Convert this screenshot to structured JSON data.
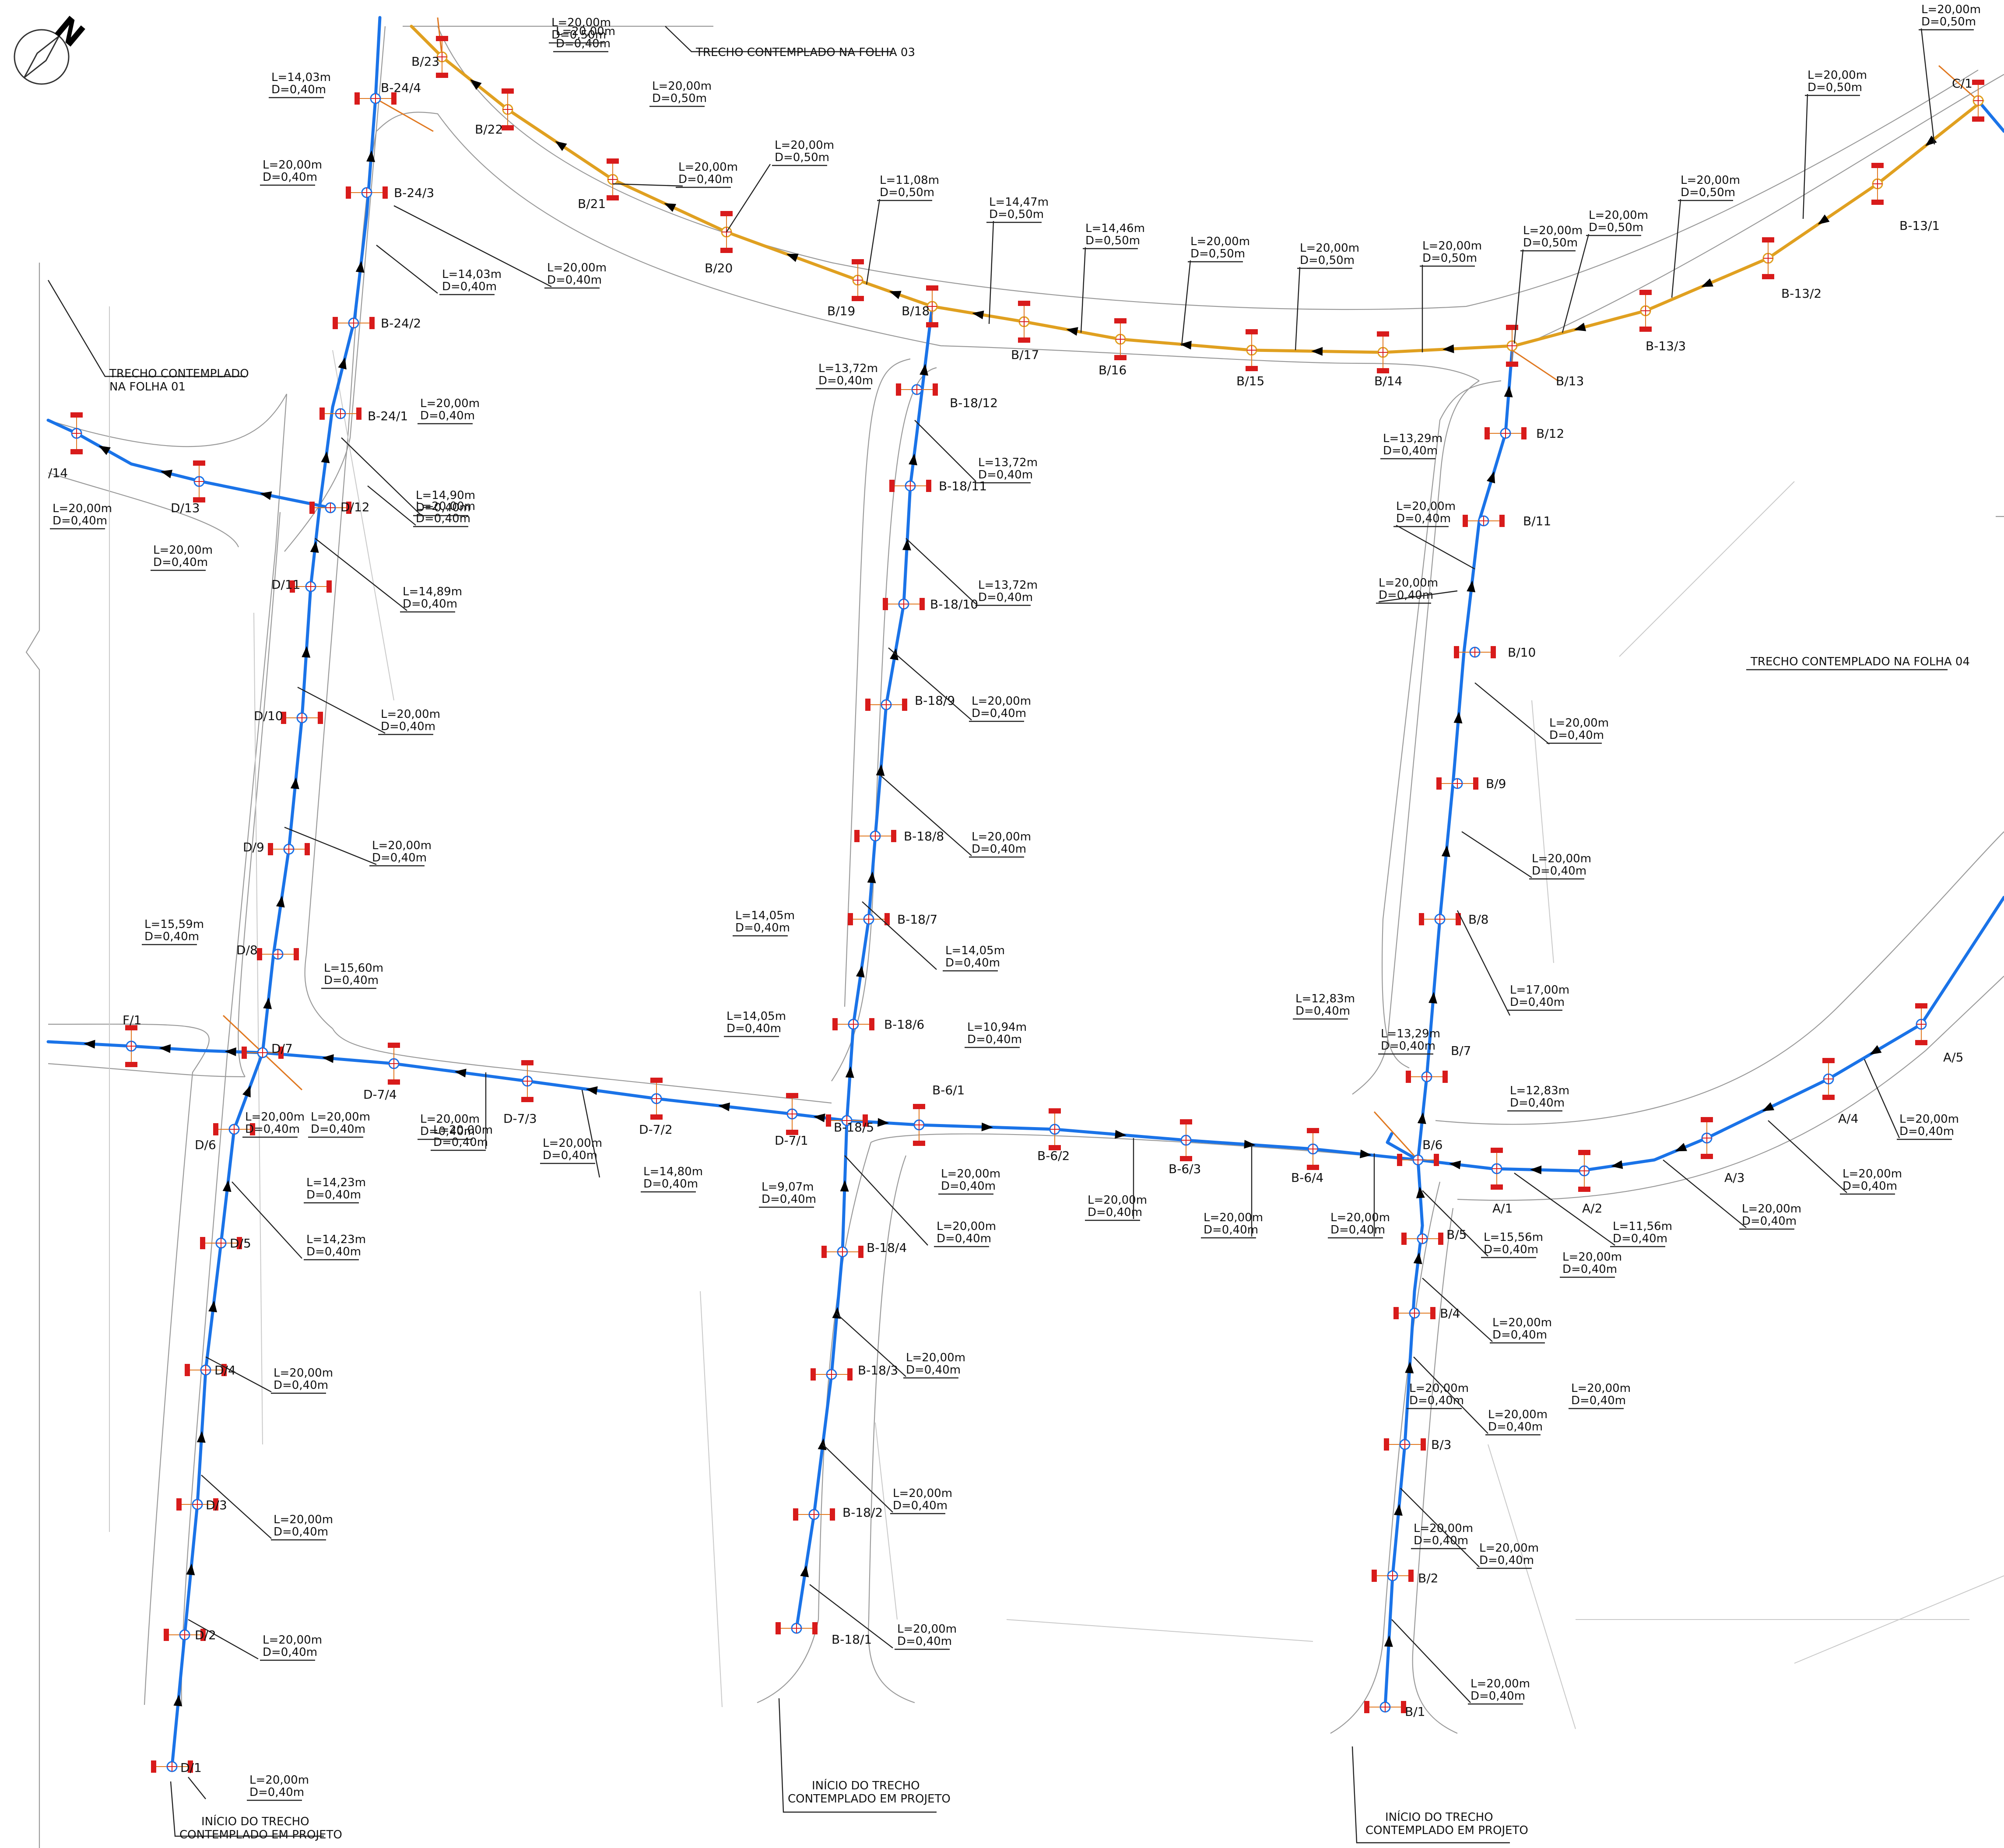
{
  "colors": {
    "pipe_d040": "#1a73e8",
    "pipe_d050": "#e0a020",
    "node_mark": "#d81b1b",
    "connection": "#e07820",
    "road": "#9a9a9a"
  },
  "icons": {
    "north": "north-arrow-icon",
    "flow": "flow-arrow-icon",
    "node": "manhole-node-icon",
    "inlet": "storm-inlet-icon"
  },
  "north_label": "N",
  "notes": [
    {
      "id": "folha03",
      "text": "TRECHO  CONTEMPLADO  NA  FOLHA  03"
    },
    {
      "id": "folha01a",
      "text": "TRECHO  CONTEMPLADO"
    },
    {
      "id": "folha01b",
      "text": "NA  FOLHA  01"
    },
    {
      "id": "folha04",
      "text": "TRECHO  CONTEMPLADO  NA  FOLHA  04"
    },
    {
      "id": "inicio1a",
      "text": "INÍCIO  DO  TRECHO"
    },
    {
      "id": "inicio1b",
      "text": "CONTEMPLADO  EM  PROJETO"
    },
    {
      "id": "inicio2a",
      "text": "INÍCIO  DO  TRECHO"
    },
    {
      "id": "inicio2b",
      "text": "CONTEMPLADO  EM  PROJETO"
    },
    {
      "id": "inicio3a",
      "text": "INÍCIO  DO  TRECHO"
    },
    {
      "id": "inicio3b",
      "text": "CONTEMPLADO  EM  PROJETO"
    }
  ],
  "nodes": [
    "D/1",
    "D/2",
    "D/3",
    "D/4",
    "D/5",
    "D/6",
    "D/7",
    "D/8",
    "D/9",
    "D/10",
    "D/11",
    "D/12",
    "D/13",
    "/14",
    "F/1",
    "B-24/1",
    "B-24/2",
    "B-24/3",
    "B-24/4",
    "B/23",
    "B/22",
    "B/21",
    "B/20",
    "B/19",
    "B/18",
    "B/17",
    "B/16",
    "B/15",
    "B/14",
    "B/13",
    "B/12",
    "B/11",
    "B/10",
    "B/9",
    "B/8",
    "B/7",
    "B/6",
    "B/5",
    "B/4",
    "B/3",
    "B/2",
    "B/1",
    "B-13/1",
    "B-13/2",
    "B-13/3",
    "C/1",
    "D-7/1",
    "D-7/2",
    "D-7/3",
    "D-7/4",
    "B-18/1",
    "B-18/2",
    "B-18/3",
    "B-18/4",
    "B-18/5",
    "B-18/6",
    "B-18/7",
    "B-18/8",
    "B-18/9",
    "B-18/10",
    "B-18/11",
    "B-18/12",
    "B-6/1",
    "B-6/2",
    "B-6/3",
    "B-6/4",
    "A/1",
    "A/2",
    "A/3",
    "A/4",
    "A/5"
  ],
  "segments": [
    {
      "L": "L=20,00m",
      "D": "D=0,40m"
    },
    {
      "L": "L=20,00m",
      "D": "D=0,40m"
    },
    {
      "L": "L=20,00m",
      "D": "D=0,40m"
    },
    {
      "L": "L=20,00m",
      "D": "D=0,40m"
    },
    {
      "L": "L=14,23m",
      "D": "D=0,40m"
    },
    {
      "L": "L=14,23m",
      "D": "D=0,40m"
    },
    {
      "L": "L=20,00m",
      "D": "D=0,40m"
    },
    {
      "L": "L=15,59m",
      "D": "D=0,40m"
    },
    {
      "L": "L=15,60m",
      "D": "D=0,40m"
    },
    {
      "L": "L=20,00m",
      "D": "D=0,40m"
    },
    {
      "L": "L=20,00m",
      "D": "D=0,40m"
    },
    {
      "L": "L=14,89m",
      "D": "D=0,40m"
    },
    {
      "L": "L=14,90m",
      "D": "D=0,40m"
    },
    {
      "L": "L=20,00m",
      "D": "D=0,40m"
    },
    {
      "L": "L=20,00m",
      "D": "D=0,40m"
    },
    {
      "L": "L=20,00m",
      "D": "D=0,40m"
    },
    {
      "L": "L=20,00m",
      "D": "D=0,40m"
    },
    {
      "L": "L=14,03m",
      "D": "D=0,40m"
    },
    {
      "L": "L=14,03m",
      "D": "D=0,40m"
    },
    {
      "L": "L=20,00m",
      "D": "D=0,40m"
    },
    {
      "L": "L=20,00m",
      "D": "D=0,40m"
    },
    {
      "L": "L=20,00m",
      "D": "D=0,40m"
    },
    {
      "L": "L=20,00m",
      "D": "D=0,40m"
    },
    {
      "L": "L=20,00m",
      "D": "D=0,50m"
    },
    {
      "L": "L=20,00m",
      "D": "D=0,50m"
    },
    {
      "L": "L=20,00m",
      "D": "D=0,50m"
    },
    {
      "L": "L=11,08m",
      "D": "D=0,50m"
    },
    {
      "L": "L=14,47m",
      "D": "D=0,50m"
    },
    {
      "L": "L=14,46m",
      "D": "D=0,50m"
    },
    {
      "L": "L=20,00m",
      "D": "D=0,50m"
    },
    {
      "L": "L=20,00m",
      "D": "D=0,50m"
    },
    {
      "L": "L=20,00m",
      "D": "D=0,50m"
    },
    {
      "L": "L=20,00m",
      "D": "D=0,50m"
    },
    {
      "L": "L=20,00m",
      "D": "D=0,50m"
    },
    {
      "L": "L=20,00m",
      "D": "D=0,50m"
    },
    {
      "L": "L=20,00m",
      "D": "D=0,50m"
    },
    {
      "L": "L=20,00m",
      "D": "D=0,50m"
    },
    {
      "L": "L=13,72m",
      "D": "D=0,40m"
    },
    {
      "L": "L=13,72m",
      "D": "D=0,40m"
    },
    {
      "L": "L=13,72m",
      "D": "D=0,40m"
    },
    {
      "L": "L=20,00m",
      "D": "D=0,40m"
    },
    {
      "L": "L=20,00m",
      "D": "D=0,40m"
    },
    {
      "L": "L=14,05m",
      "D": "D=0,40m"
    },
    {
      "L": "L=14,05m",
      "D": "D=0,40m"
    },
    {
      "L": "L=14,05m",
      "D": "D=0,40m"
    },
    {
      "L": "L=10,94m",
      "D": "D=0,40m"
    },
    {
      "L": "L=9,07m",
      "D": "D=0,40m"
    },
    {
      "L": "L=20,00m",
      "D": "D=0,40m"
    },
    {
      "L": "L=20,00m",
      "D": "D=0,40m"
    },
    {
      "L": "L=20,00m",
      "D": "D=0,40m"
    },
    {
      "L": "L=20,00m",
      "D": "D=0,40m"
    },
    {
      "L": "L=20,00m",
      "D": "D=0,40m"
    },
    {
      "L": "L=20,00m",
      "D": "D=0,40m"
    },
    {
      "L": "L=20,00m",
      "D": "D=0,40m"
    },
    {
      "L": "L=20,00m",
      "D": "D=0,40m"
    },
    {
      "L": "L=20,00m",
      "D": "D=0,40m"
    },
    {
      "L": "L=20,00m",
      "D": "D=0,40m"
    },
    {
      "L": "L=20,00m",
      "D": "D=0,40m"
    },
    {
      "L": "L=20,00m",
      "D": "D=0,40m"
    },
    {
      "L": "L=14,80m",
      "D": "D=0,40m"
    },
    {
      "L": "L=13,29m",
      "D": "D=0,40m"
    },
    {
      "L": "L=13,29m",
      "D": "D=0,40m"
    },
    {
      "L": "L=20,00m",
      "D": "D=0,40m"
    },
    {
      "L": "L=20,00m",
      "D": "D=0,40m"
    },
    {
      "L": "L=20,00m",
      "D": "D=0,40m"
    },
    {
      "L": "L=20,00m",
      "D": "D=0,40m"
    },
    {
      "L": "L=17,00m",
      "D": "D=0,40m"
    },
    {
      "L": "L=12,83m",
      "D": "D=0,40m"
    },
    {
      "L": "L=12,83m",
      "D": "D=0,40m"
    },
    {
      "L": "L=11,56m",
      "D": "D=0,40m"
    },
    {
      "L": "L=15,56m",
      "D": "D=0,40m"
    },
    {
      "L": "L=20,00m",
      "D": "D=0,40m"
    },
    {
      "L": "L=20,00m",
      "D": "D=0,40m"
    },
    {
      "L": "L=20,00m",
      "D": "D=0,40m"
    },
    {
      "L": "L=20,00m",
      "D": "D=0,40m"
    },
    {
      "L": "L=20,00m",
      "D": "D=0,40m"
    },
    {
      "L": "L=20,00m",
      "D": "D=0,40m"
    },
    {
      "L": "L=20,00m",
      "D": "D=0,40m"
    },
    {
      "L": "L=20,00m",
      "D": "D=0,40m"
    },
    {
      "L": "L=20,00m",
      "D": "D=0,40m"
    },
    {
      "L": "L=20,00m",
      "D": "D=0,40m"
    },
    {
      "L": "L=20,00m",
      "D": "D=0,40m"
    }
  ]
}
